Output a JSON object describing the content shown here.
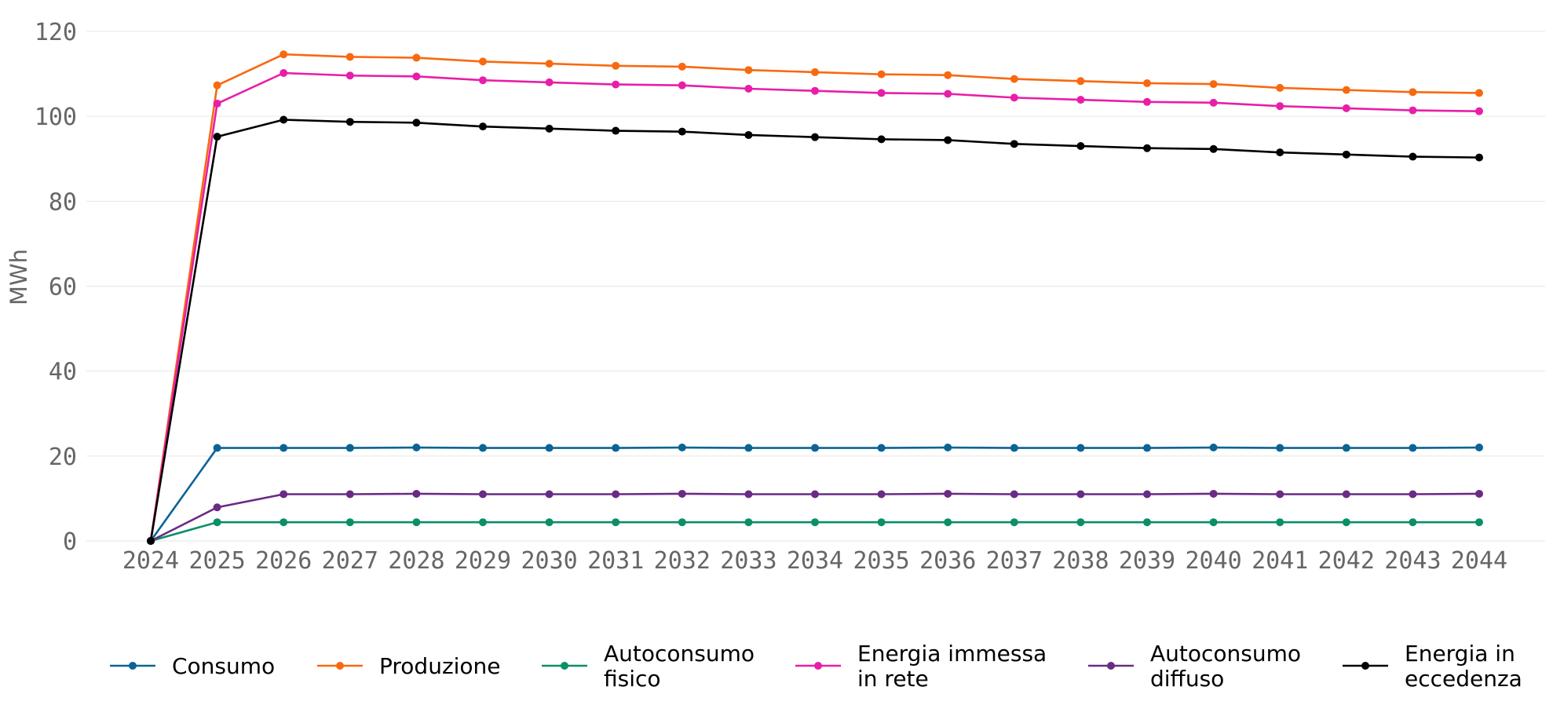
{
  "chart_data": {
    "type": "line",
    "title": "",
    "xlabel": "",
    "ylabel": "MWh",
    "ylim": [
      0,
      120
    ],
    "yticks": [
      0,
      20,
      40,
      60,
      80,
      100,
      120
    ],
    "grid": "horizontal",
    "legend_position": "bottom",
    "x": [
      "2024",
      "2025",
      "2026",
      "2027",
      "2028",
      "2029",
      "2030",
      "2031",
      "2032",
      "2033",
      "2034",
      "2035",
      "2036",
      "2037",
      "2038",
      "2039",
      "2040",
      "2041",
      "2042",
      "2043",
      "2044"
    ],
    "series": [
      {
        "name": "Consumo",
        "legend_lines": [
          "Consumo"
        ],
        "color": "#0b6396",
        "values": [
          0,
          21.9,
          21.9,
          21.9,
          22.0,
          21.9,
          21.9,
          21.9,
          22.0,
          21.9,
          21.9,
          21.9,
          22.0,
          21.9,
          21.9,
          21.9,
          22.0,
          21.9,
          21.9,
          21.9,
          22.0
        ]
      },
      {
        "name": "Produzione",
        "legend_lines": [
          "Produzione"
        ],
        "color": "#f8690f",
        "values": [
          0,
          107.3,
          114.6,
          114.0,
          113.8,
          112.9,
          112.4,
          111.9,
          111.7,
          110.9,
          110.4,
          109.9,
          109.7,
          108.8,
          108.3,
          107.8,
          107.6,
          106.7,
          106.2,
          105.7,
          105.5
        ]
      },
      {
        "name": "Autoconsumo fisico",
        "legend_lines": [
          "Autoconsumo",
          "fisico"
        ],
        "color": "#0a8f68",
        "values": [
          0,
          4.4,
          4.4,
          4.4,
          4.4,
          4.4,
          4.4,
          4.4,
          4.4,
          4.4,
          4.4,
          4.4,
          4.4,
          4.4,
          4.4,
          4.4,
          4.4,
          4.4,
          4.4,
          4.4,
          4.4
        ]
      },
      {
        "name": "Energia immessa in rete",
        "legend_lines": [
          "Energia immessa",
          "in rete"
        ],
        "color": "#e81ea8",
        "values": [
          0,
          103.0,
          110.2,
          109.6,
          109.4,
          108.5,
          108.0,
          107.5,
          107.3,
          106.5,
          106.0,
          105.5,
          105.3,
          104.4,
          103.9,
          103.4,
          103.2,
          102.4,
          101.9,
          101.4,
          101.2
        ]
      },
      {
        "name": "Autoconsumo diffuso",
        "legend_lines": [
          "Autoconsumo",
          "diffuso"
        ],
        "color": "#6a2b84",
        "values": [
          0,
          7.9,
          11.0,
          11.0,
          11.1,
          11.0,
          11.0,
          11.0,
          11.1,
          11.0,
          11.0,
          11.0,
          11.1,
          11.0,
          11.0,
          11.0,
          11.1,
          11.0,
          11.0,
          11.0,
          11.1
        ]
      },
      {
        "name": "Energia in eccedenza",
        "legend_lines": [
          "Energia in",
          "eccedenza"
        ],
        "color": "#000000",
        "values": [
          0,
          95.2,
          99.2,
          98.7,
          98.5,
          97.6,
          97.1,
          96.6,
          96.4,
          95.6,
          95.1,
          94.6,
          94.4,
          93.5,
          93.0,
          92.5,
          92.3,
          91.5,
          91.0,
          90.5,
          90.3
        ]
      }
    ]
  }
}
